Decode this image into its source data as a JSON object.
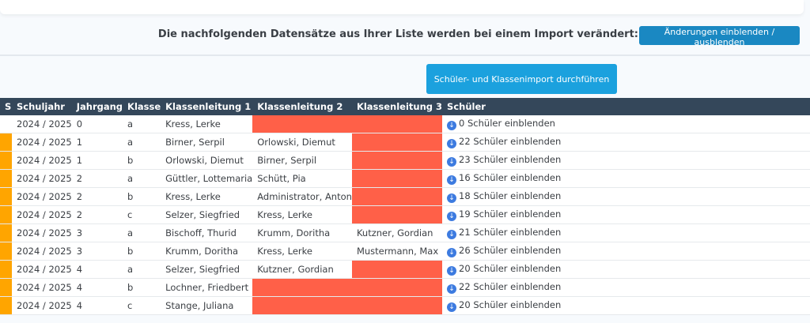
{
  "info_text": "Die nachfolgenden Datensätze aus Ihrer Liste werden bei einem Import verändert:",
  "toggle_button": "Änderungen einblenden / ausblenden",
  "import_button": "Schüler- und Klassenimport durchführen",
  "columns": [
    "S",
    "Schuljahr",
    "Jahrgang",
    "Klasse",
    "Klassenleitung 1",
    "Klassenleitung 2",
    "Klassenleitung 3",
    "Schüler"
  ],
  "colors": {
    "changed": "#ffa500",
    "missing": "#ff6048",
    "header": "#34475a"
  },
  "rows": [
    {
      "changed": false,
      "schuljahr": "2024 / 2025",
      "jahrgang": "0",
      "klasse": "a",
      "kl1": "Kress, Lerke",
      "kl2": "",
      "kl3": "",
      "kl2_missing": true,
      "kl3_missing": true,
      "schueler": "0 Schüler einblenden"
    },
    {
      "changed": true,
      "schuljahr": "2024 / 2025",
      "jahrgang": "1",
      "klasse": "a",
      "kl1": "Birner, Serpil",
      "kl2": "Orlowski, Diemut",
      "kl3": "",
      "kl2_missing": false,
      "kl3_missing": true,
      "schueler": "22 Schüler einblenden"
    },
    {
      "changed": true,
      "schuljahr": "2024 / 2025",
      "jahrgang": "1",
      "klasse": "b",
      "kl1": "Orlowski, Diemut",
      "kl2": "Birner, Serpil",
      "kl3": "",
      "kl2_missing": false,
      "kl3_missing": true,
      "schueler": "23 Schüler einblenden"
    },
    {
      "changed": true,
      "schuljahr": "2024 / 2025",
      "jahrgang": "2",
      "klasse": "a",
      "kl1": "Güttler, Lottemaria",
      "kl2": "Schütt, Pia",
      "kl3": "",
      "kl2_missing": false,
      "kl3_missing": true,
      "schueler": "16 Schüler einblenden"
    },
    {
      "changed": true,
      "schuljahr": "2024 / 2025",
      "jahrgang": "2",
      "klasse": "b",
      "kl1": "Kress, Lerke",
      "kl2": "Administrator, Anton",
      "kl3": "",
      "kl2_missing": false,
      "kl3_missing": true,
      "schueler": "18 Schüler einblenden"
    },
    {
      "changed": true,
      "schuljahr": "2024 / 2025",
      "jahrgang": "2",
      "klasse": "c",
      "kl1": "Selzer, Siegfried",
      "kl2": "Kress, Lerke",
      "kl3": "",
      "kl2_missing": false,
      "kl3_missing": true,
      "schueler": "19 Schüler einblenden"
    },
    {
      "changed": true,
      "schuljahr": "2024 / 2025",
      "jahrgang": "3",
      "klasse": "a",
      "kl1": "Bischoff, Thurid",
      "kl2": "Krumm, Doritha",
      "kl3": "Kutzner, Gordian",
      "kl2_missing": false,
      "kl3_missing": false,
      "schueler": "21 Schüler einblenden"
    },
    {
      "changed": true,
      "schuljahr": "2024 / 2025",
      "jahrgang": "3",
      "klasse": "b",
      "kl1": "Krumm, Doritha",
      "kl2": "Kress, Lerke",
      "kl3": "Mustermann, Max",
      "kl2_missing": false,
      "kl3_missing": false,
      "schueler": "26 Schüler einblenden"
    },
    {
      "changed": true,
      "schuljahr": "2024 / 2025",
      "jahrgang": "4",
      "klasse": "a",
      "kl1": "Selzer, Siegfried",
      "kl2": "Kutzner, Gordian",
      "kl3": "",
      "kl2_missing": false,
      "kl3_missing": true,
      "schueler": "20 Schüler einblenden"
    },
    {
      "changed": true,
      "schuljahr": "2024 / 2025",
      "jahrgang": "4",
      "klasse": "b",
      "kl1": "Lochner, Friedbert",
      "kl2": "",
      "kl3": "",
      "kl2_missing": true,
      "kl3_missing": true,
      "schueler": "22 Schüler einblenden"
    },
    {
      "changed": true,
      "schuljahr": "2024 / 2025",
      "jahrgang": "4",
      "klasse": "c",
      "kl1": "Stange, Juliana",
      "kl2": "",
      "kl3": "",
      "kl2_missing": true,
      "kl3_missing": true,
      "schueler": "20 Schüler einblenden"
    }
  ]
}
